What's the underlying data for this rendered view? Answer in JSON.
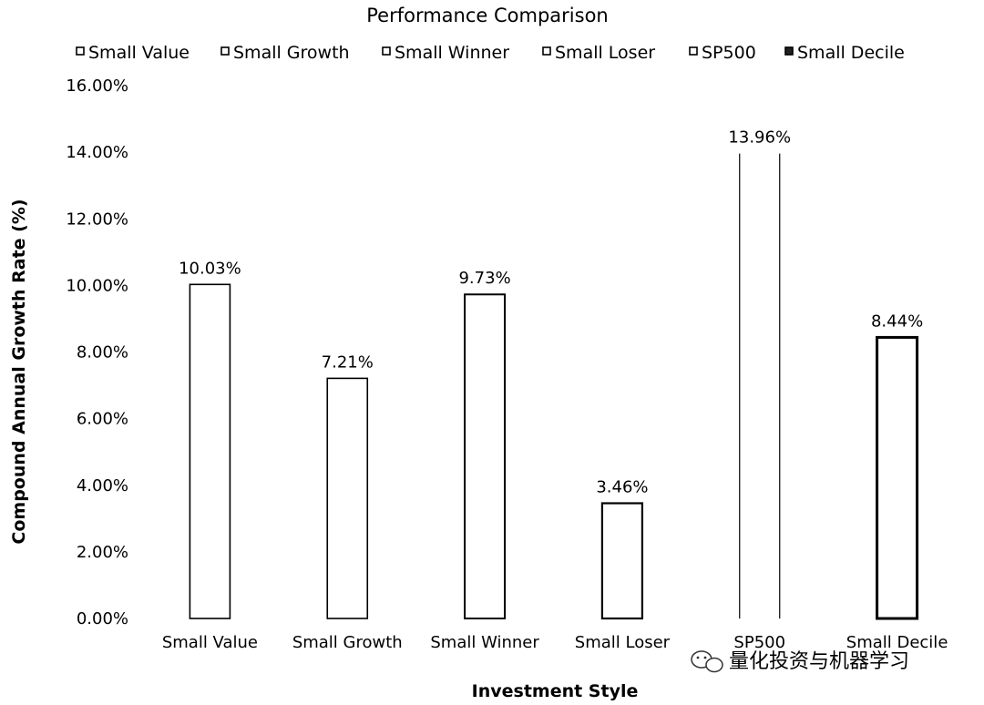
{
  "chart_data": {
    "type": "bar",
    "title": "Performance Comparison",
    "xlabel": "Investment Style",
    "ylabel": "Compound Annual Growth Rate (%)",
    "categories": [
      "Small Value",
      "Small Growth",
      "Small Winner",
      "Small Loser",
      "SP500",
      "Small Decile"
    ],
    "values": [
      10.03,
      7.21,
      9.73,
      3.46,
      13.96,
      8.44
    ],
    "data_labels": [
      "10.03%",
      "7.21%",
      "9.73%",
      "3.46%",
      "13.96%",
      "8.44%"
    ],
    "legend": [
      "Small Value",
      "Small Growth",
      "Small Winner",
      "Small Loser",
      "SP500",
      "Small Decile"
    ],
    "legend_position": "top",
    "ylim": [
      0,
      16
    ],
    "yticks": [
      "0.00%",
      "2.00%",
      "4.00%",
      "6.00%",
      "8.00%",
      "10.00%",
      "12.00%",
      "14.00%",
      "16.00%"
    ],
    "grid": false
  },
  "watermark": {
    "text": "量化投资与机器学习",
    "icon": "wechat-icon"
  }
}
